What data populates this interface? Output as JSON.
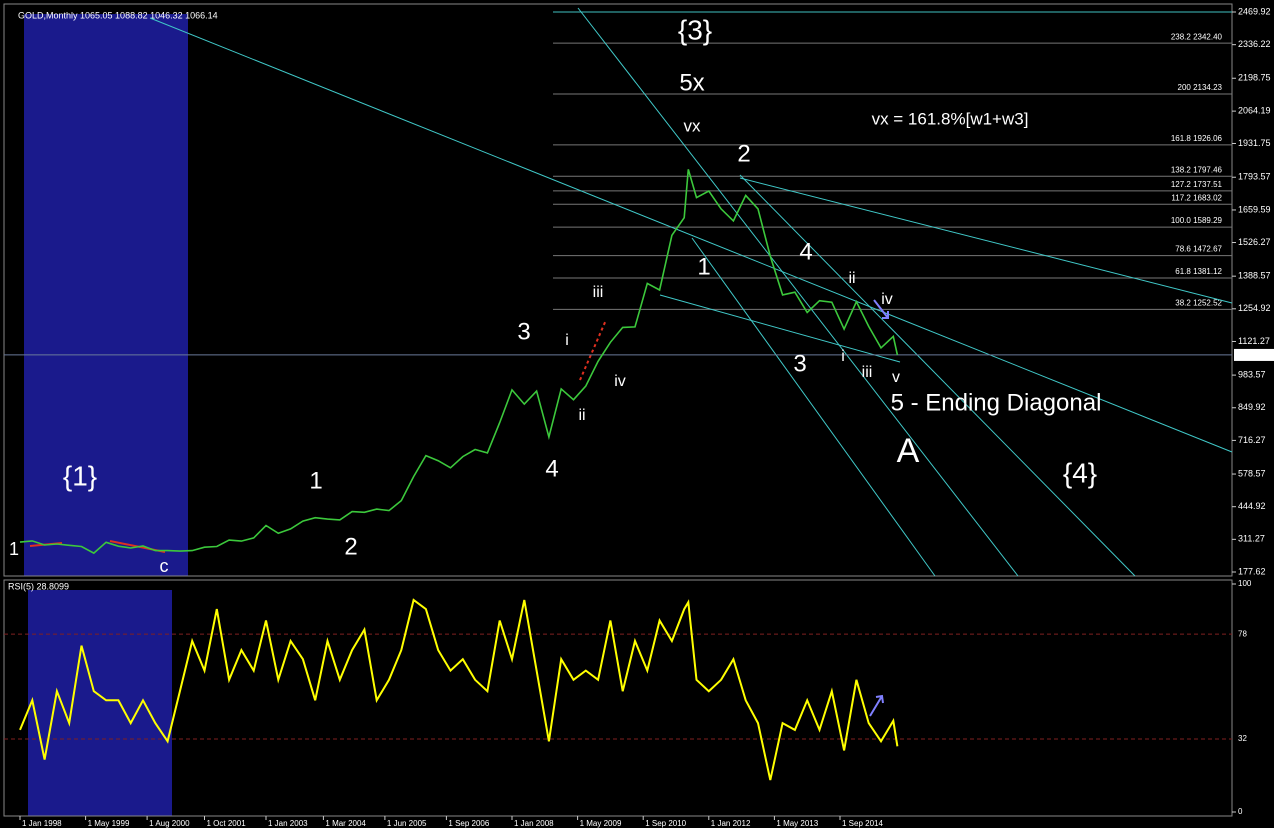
{
  "chart_data": [
    {
      "type": "line",
      "title": "GOLD,Monthly  1065.05 1088.82 1046.32 1066.14",
      "color": "#3cc83c",
      "x": [
        "1 Jan 1998",
        "1 Apr 1998",
        "1 Jul 1998",
        "1 Oct 1998",
        "1 Jan 1999",
        "1 Apr 1999",
        "1 Jul 1999",
        "1 Oct 1999",
        "1 Jan 2000",
        "1 Apr 2000",
        "1 Jul 2000",
        "1 Oct 2000",
        "1 Jan 2001",
        "1 Apr 2001",
        "1 Jul 2001",
        "1 Oct 2001",
        "1 Jan 2002",
        "1 Apr 2002",
        "1 Jul 2002",
        "1 Oct 2002",
        "1 Jan 2003",
        "1 Apr 2003",
        "1 Jul 2003",
        "1 Oct 2003",
        "1 Jan 2004",
        "1 Apr 2004",
        "1 Jul 2004",
        "1 Oct 2004",
        "1 Jan 2005",
        "1 Apr 2005",
        "1 Jul 2005",
        "1 Oct 2005",
        "1 Jan 2006",
        "1 Apr 2006",
        "1 Jul 2006",
        "1 Oct 2006",
        "1 Jan 2007",
        "1 Apr 2007",
        "1 Jul 2007",
        "1 Oct 2007",
        "1 Jan 2008",
        "1 Apr 2008",
        "1 Jul 2008",
        "1 Oct 2008",
        "1 Jan 2009",
        "1 Apr 2009",
        "1 Jul 2009",
        "1 Oct 2009",
        "1 Jan 2010",
        "1 Apr 2010",
        "1 Jul 2010",
        "1 Oct 2010",
        "1 Jan 2011",
        "1 Apr 2011",
        "1 Jul 2011",
        "1 Aug 2011",
        "1 Oct 2011",
        "1 Jan 2012",
        "1 Apr 2012",
        "1 Jul 2012",
        "1 Oct 2012",
        "1 Jan 2013",
        "1 Apr 2013",
        "1 Jul 2013",
        "1 Oct 2013",
        "1 Jan 2014",
        "1 Apr 2014",
        "1 Jul 2014",
        "1 Oct 2014",
        "1 Jan 2015",
        "1 Apr 2015",
        "1 Jul 2015",
        "1 Oct 2015",
        "1 Nov 2015"
      ],
      "values": [
        300,
        305,
        288,
        292,
        287,
        282,
        255,
        299,
        283,
        276,
        284,
        265,
        265,
        263,
        265,
        279,
        282,
        308,
        304,
        317,
        368,
        336,
        354,
        386,
        400,
        394,
        391,
        425,
        422,
        435,
        429,
        470,
        568,
        654,
        633,
        604,
        650,
        679,
        665,
        789,
        923,
        865,
        918,
        730,
        927,
        883,
        939,
        1040,
        1118,
        1179,
        1181,
        1359,
        1332,
        1556,
        1628,
        1826,
        1710,
        1737,
        1664,
        1615,
        1719,
        1664,
        1470,
        1312,
        1323,
        1240,
        1288,
        1282,
        1172,
        1284,
        1183,
        1095,
        1142,
        1066.14
      ],
      "ylim": [
        161.2,
        2502.7
      ],
      "yticks": [
        2469.92,
        2336.22,
        2198.75,
        2064.19,
        1931.75,
        1793.57,
        1659.59,
        1526.27,
        1388.57,
        1254.92,
        1121.27,
        983.57,
        849.92,
        716.27,
        578.57,
        444.92,
        311.27,
        177.62
      ],
      "xticks": [
        "1 Jan 1998",
        "1 May 1999",
        "1 Aug 2000",
        "1 Oct 2001",
        "1 Jan 2003",
        "1 Mar 2004",
        "1 Jun 2005",
        "1 Sep 2006",
        "1 Jan 2008",
        "1 May 2009",
        "1 Sep 2010",
        "1 Jan 2012",
        "1 May 2013",
        "1 Sep 2014"
      ],
      "fib_levels": [
        {
          "value": 2342.4,
          "label": "238.2 2342.40"
        },
        {
          "value": 2134.23,
          "label": "200 2134.23"
        },
        {
          "value": 1926.06,
          "label": "161.8 1926.06"
        },
        {
          "value": 1797.46,
          "label": "138.2 1797.46"
        },
        {
          "value": 1737.51,
          "label": "127.2 1737.51"
        },
        {
          "value": 1683.02,
          "label": "117.2 1683.02"
        },
        {
          "value": 1589.29,
          "label": "100.0 1589.29"
        },
        {
          "value": 1472.67,
          "label": "78.6 1472.67"
        },
        {
          "value": 1381.12,
          "label": "61.8 1381.12"
        },
        {
          "value": 1252.52,
          "label": "38.2 1252.52"
        }
      ],
      "annotations": [
        {
          "text": "{3}",
          "color": "#e8e800"
        },
        {
          "text": "5x",
          "color": "#e00000"
        },
        {
          "text": "vx",
          "color": "#e000e0"
        },
        {
          "text": "vx = 161.8%[w1+w3]",
          "color": "#e000e0"
        },
        {
          "text": "2",
          "color": "#e00000"
        },
        {
          "text": "4",
          "color": "#e00000"
        },
        {
          "text": "ii",
          "color": "#e000e0"
        },
        {
          "text": "iv",
          "color": "#e000e0"
        },
        {
          "text": "1",
          "color": "#e00000"
        },
        {
          "text": "3",
          "color": "#e00000"
        },
        {
          "text": "i",
          "color": "#e000e0"
        },
        {
          "text": "iii",
          "color": "#e000e0"
        },
        {
          "text": "v",
          "color": "#e000e0"
        },
        {
          "text": "5 - Ending Diagonal",
          "color": "#e00000"
        },
        {
          "text": "A",
          "color": "#40d0d0"
        },
        {
          "text": "{4}",
          "color": "#e8e800"
        },
        {
          "text": "{1}",
          "color": "#e8e800"
        },
        {
          "text": "1",
          "color": "#e00000"
        },
        {
          "text": "2",
          "color": "#e00000"
        },
        {
          "text": "3",
          "color": "#e00000"
        },
        {
          "text": "4",
          "color": "#e00000"
        },
        {
          "text": "i",
          "color": "#e000e0"
        },
        {
          "text": "ii",
          "color": "#e000e0"
        },
        {
          "text": "iii",
          "color": "#e000e0"
        },
        {
          "text": "iv",
          "color": "#e000e0"
        },
        {
          "text": "c",
          "color": "#80c080"
        },
        {
          "text": "1",
          "color": "#80ffc0"
        }
      ]
    },
    {
      "type": "line",
      "title": "RSI(5) 28.8099",
      "color": "#ffff00",
      "values": [
        36,
        49,
        23,
        53,
        39,
        73,
        53,
        49,
        49,
        39,
        49,
        39,
        31,
        53,
        75,
        62,
        89,
        58,
        71,
        62,
        84,
        58,
        75,
        67,
        49,
        75,
        58,
        71,
        80,
        49,
        58,
        71,
        93,
        89,
        71,
        62,
        67,
        58,
        53,
        84,
        67,
        93,
        62,
        31,
        67,
        58,
        62,
        58,
        84,
        53,
        75,
        62,
        84,
        75,
        89,
        92,
        58,
        53,
        58,
        67,
        49,
        39,
        14,
        39,
        36,
        49,
        36,
        53,
        27,
        58,
        39,
        31,
        40,
        28.8099
      ],
      "ylim": [
        0,
        100
      ],
      "yticks": [
        100,
        78,
        32,
        0
      ]
    }
  ]
}
